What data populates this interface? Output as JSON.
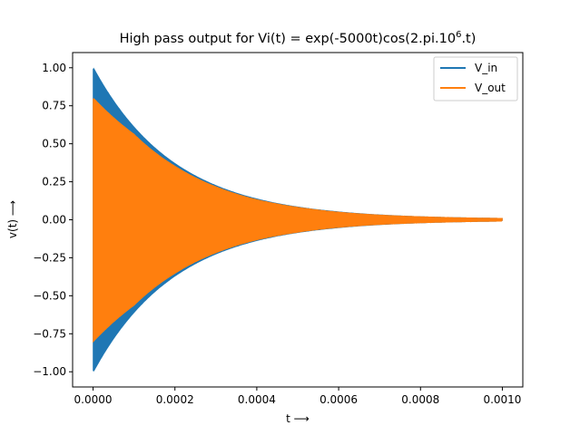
{
  "chart_data": {
    "type": "line",
    "title_main": "High pass output for Vi(t) = exp(-5000t)cos(2.pi.10",
    "title_sup": "6",
    "title_tail": ".t)",
    "xlabel": "t ⟶",
    "ylabel": "v(t) ⟶",
    "xlim": [
      -5e-05,
      0.00105
    ],
    "ylim": [
      -1.1,
      1.1
    ],
    "xticks": [
      0.0,
      0.0002,
      0.0004,
      0.0006,
      0.0008,
      0.001
    ],
    "xtick_labels": [
      "0.0000",
      "0.0002",
      "0.0004",
      "0.0006",
      "0.0008",
      "0.0010"
    ],
    "yticks": [
      1.0,
      0.75,
      0.5,
      0.25,
      0.0,
      -0.25,
      -0.5,
      -0.75,
      -1.0
    ],
    "ytick_labels": [
      "1.00",
      "0.75",
      "0.50",
      "0.25",
      "0.00",
      "−0.25",
      "−0.50",
      "−0.75",
      "−1.00"
    ],
    "grid": false,
    "legend_position": "top-right",
    "series": [
      {
        "name": "V_in",
        "color": "#1f77b4",
        "x": [
          0.0,
          0.0001,
          0.0002,
          0.0003,
          0.0004,
          0.0005,
          0.0006,
          0.0007,
          0.0008,
          0.0009,
          0.001
        ],
        "envelope_upper": [
          1.0,
          0.607,
          0.368,
          0.223,
          0.135,
          0.082,
          0.05,
          0.03,
          0.018,
          0.011,
          0.007
        ],
        "envelope_lower": [
          -1.0,
          -0.607,
          -0.368,
          -0.223,
          -0.135,
          -0.082,
          -0.05,
          -0.03,
          -0.018,
          -0.011,
          -0.007
        ]
      },
      {
        "name": "V_out",
        "color": "#ff7f0e",
        "x": [
          0.0,
          0.0001,
          0.0002,
          0.0003,
          0.0004,
          0.0005,
          0.0006,
          0.0007,
          0.0008,
          0.0009,
          0.001
        ],
        "envelope_upper": [
          0.8,
          0.56,
          0.35,
          0.215,
          0.13,
          0.08,
          0.048,
          0.029,
          0.018,
          0.011,
          0.007
        ],
        "envelope_lower": [
          -0.8,
          -0.56,
          -0.35,
          -0.215,
          -0.13,
          -0.08,
          -0.048,
          -0.029,
          -0.018,
          -0.011,
          -0.007
        ]
      }
    ]
  }
}
